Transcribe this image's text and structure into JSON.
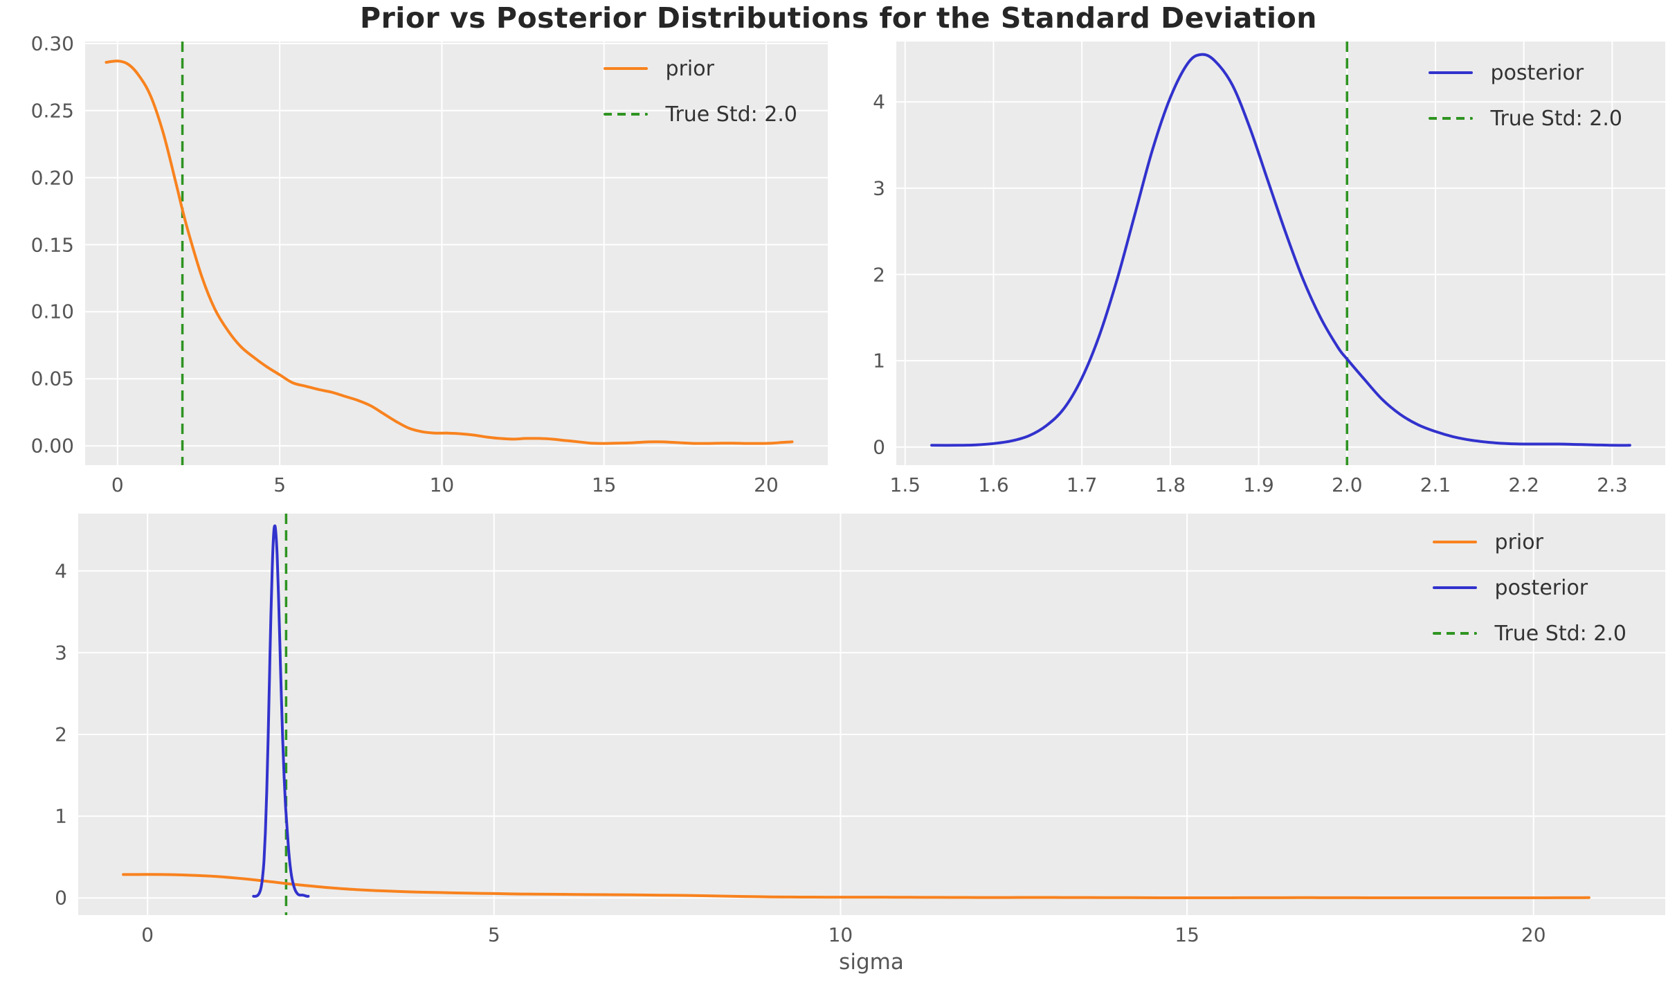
{
  "figure": {
    "title": "Prior vs Posterior Distributions for the Standard Deviation",
    "bottom_xlabel": "sigma",
    "colors": {
      "prior": "#f8821e",
      "posterior": "#3232cd",
      "true_std": "#2e9421",
      "plot_bg": "#ebebeb",
      "grid": "#ffffff",
      "tick_text": "#555555",
      "legend_text": "#333333",
      "title_text": "#262626"
    },
    "true_std_value": 2.0
  },
  "series_points": {
    "prior": [
      [
        -0.35,
        0.286
      ],
      [
        0,
        0.287
      ],
      [
        0.3,
        0.285
      ],
      [
        0.6,
        0.278
      ],
      [
        1.0,
        0.262
      ],
      [
        1.4,
        0.234
      ],
      [
        1.8,
        0.196
      ],
      [
        2.0,
        0.176
      ],
      [
        2.2,
        0.158
      ],
      [
        2.6,
        0.126
      ],
      [
        3.0,
        0.102
      ],
      [
        3.4,
        0.086
      ],
      [
        3.8,
        0.074
      ],
      [
        4.2,
        0.066
      ],
      [
        4.6,
        0.059
      ],
      [
        5.0,
        0.053
      ],
      [
        5.4,
        0.047
      ],
      [
        5.8,
        0.0445
      ],
      [
        6.2,
        0.042
      ],
      [
        6.6,
        0.04
      ],
      [
        7.0,
        0.037
      ],
      [
        7.4,
        0.034
      ],
      [
        7.8,
        0.03
      ],
      [
        8.2,
        0.024
      ],
      [
        8.6,
        0.018
      ],
      [
        9.0,
        0.013
      ],
      [
        9.4,
        0.0105
      ],
      [
        9.8,
        0.0095
      ],
      [
        10.2,
        0.0095
      ],
      [
        10.6,
        0.009
      ],
      [
        11.0,
        0.008
      ],
      [
        11.4,
        0.0065
      ],
      [
        11.8,
        0.0055
      ],
      [
        12.2,
        0.005
      ],
      [
        12.6,
        0.0055
      ],
      [
        13.0,
        0.0055
      ],
      [
        13.4,
        0.005
      ],
      [
        13.8,
        0.004
      ],
      [
        14.2,
        0.003
      ],
      [
        14.6,
        0.002
      ],
      [
        15.0,
        0.0018
      ],
      [
        15.4,
        0.002
      ],
      [
        15.8,
        0.0022
      ],
      [
        16.2,
        0.0028
      ],
      [
        16.6,
        0.003
      ],
      [
        17.0,
        0.0028
      ],
      [
        17.4,
        0.0022
      ],
      [
        17.8,
        0.0018
      ],
      [
        18.2,
        0.0018
      ],
      [
        18.6,
        0.002
      ],
      [
        19.0,
        0.002
      ],
      [
        19.4,
        0.0018
      ],
      [
        19.8,
        0.0018
      ],
      [
        20.2,
        0.002
      ],
      [
        20.5,
        0.0026
      ],
      [
        20.8,
        0.003
      ]
    ],
    "posterior": [
      [
        1.53,
        0.02
      ],
      [
        1.56,
        0.02
      ],
      [
        1.58,
        0.025
      ],
      [
        1.6,
        0.04
      ],
      [
        1.62,
        0.07
      ],
      [
        1.64,
        0.13
      ],
      [
        1.66,
        0.25
      ],
      [
        1.68,
        0.45
      ],
      [
        1.7,
        0.8
      ],
      [
        1.72,
        1.3
      ],
      [
        1.74,
        1.95
      ],
      [
        1.76,
        2.7
      ],
      [
        1.78,
        3.45
      ],
      [
        1.8,
        4.05
      ],
      [
        1.82,
        4.45
      ],
      [
        1.835,
        4.55
      ],
      [
        1.85,
        4.48
      ],
      [
        1.87,
        4.2
      ],
      [
        1.89,
        3.7
      ],
      [
        1.91,
        3.1
      ],
      [
        1.93,
        2.5
      ],
      [
        1.95,
        1.95
      ],
      [
        1.97,
        1.5
      ],
      [
        1.99,
        1.15
      ],
      [
        2.0,
        1.02
      ],
      [
        2.02,
        0.78
      ],
      [
        2.04,
        0.55
      ],
      [
        2.06,
        0.38
      ],
      [
        2.08,
        0.26
      ],
      [
        2.1,
        0.18
      ],
      [
        2.12,
        0.12
      ],
      [
        2.14,
        0.08
      ],
      [
        2.16,
        0.055
      ],
      [
        2.18,
        0.04
      ],
      [
        2.2,
        0.035
      ],
      [
        2.22,
        0.035
      ],
      [
        2.24,
        0.035
      ],
      [
        2.26,
        0.03
      ],
      [
        2.28,
        0.025
      ],
      [
        2.3,
        0.02
      ],
      [
        2.32,
        0.02
      ]
    ]
  },
  "chart_data": [
    {
      "id": "prior-panel",
      "type": "line",
      "xlim": [
        -1.0,
        21.9
      ],
      "ylim": [
        -0.0144,
        0.3015
      ],
      "xticks": [
        0,
        5,
        10,
        15,
        20
      ],
      "xtick_labels": [
        "0",
        "5",
        "10",
        "15",
        "20"
      ],
      "yticks": [
        0.0,
        0.05,
        0.1,
        0.15,
        0.2,
        0.25,
        0.3
      ],
      "ytick_labels": [
        "0.00",
        "0.05",
        "0.10",
        "0.15",
        "0.20",
        "0.25",
        "0.30"
      ],
      "grid": true,
      "series": [
        {
          "name": "prior",
          "color": "#f8821e",
          "points_ref": "prior"
        }
      ],
      "vline": {
        "x": 2.0,
        "color": "#2e9421",
        "label": "True Std: 2.0"
      },
      "legend": {
        "position": "upper right",
        "entries": [
          {
            "label": "prior",
            "color": "#f8821e",
            "dash": false
          },
          {
            "label": "True Std: 2.0",
            "color": "#2e9421",
            "dash": true
          }
        ]
      }
    },
    {
      "id": "posterior-panel",
      "type": "line",
      "xlim": [
        1.49,
        2.36
      ],
      "ylim": [
        -0.21,
        4.7
      ],
      "xticks": [
        1.5,
        1.6,
        1.7,
        1.8,
        1.9,
        2.0,
        2.1,
        2.2,
        2.3
      ],
      "xtick_labels": [
        "1.5",
        "1.6",
        "1.7",
        "1.8",
        "1.9",
        "2.0",
        "2.1",
        "2.2",
        "2.3"
      ],
      "yticks": [
        0,
        1,
        2,
        3,
        4
      ],
      "ytick_labels": [
        "0",
        "1",
        "2",
        "3",
        "4"
      ],
      "grid": true,
      "series": [
        {
          "name": "posterior",
          "color": "#3232cd",
          "points_ref": "posterior"
        }
      ],
      "vline": {
        "x": 2.0,
        "color": "#2e9421",
        "label": "True Std: 2.0"
      },
      "legend": {
        "position": "upper right",
        "entries": [
          {
            "label": "posterior",
            "color": "#3232cd",
            "dash": false
          },
          {
            "label": "True Std: 2.0",
            "color": "#2e9421",
            "dash": true
          }
        ]
      }
    },
    {
      "id": "combined-panel",
      "type": "line",
      "xlabel": "sigma",
      "xlim": [
        -1.0,
        21.9
      ],
      "ylim": [
        -0.21,
        4.7
      ],
      "xticks": [
        0,
        5,
        10,
        15,
        20
      ],
      "xtick_labels": [
        "0",
        "5",
        "10",
        "15",
        "20"
      ],
      "yticks": [
        0,
        1,
        2,
        3,
        4
      ],
      "ytick_labels": [
        "0",
        "1",
        "2",
        "3",
        "4"
      ],
      "grid": true,
      "series": [
        {
          "name": "prior",
          "color": "#f8821e",
          "points_ref": "prior"
        },
        {
          "name": "posterior",
          "color": "#3232cd",
          "points_ref": "posterior"
        }
      ],
      "vline": {
        "x": 2.0,
        "color": "#2e9421",
        "label": "True Std: 2.0"
      },
      "legend": {
        "position": "upper right",
        "entries": [
          {
            "label": "prior",
            "color": "#f8821e",
            "dash": false
          },
          {
            "label": "posterior",
            "color": "#3232cd",
            "dash": false
          },
          {
            "label": "True Std: 2.0",
            "color": "#2e9421",
            "dash": true
          }
        ]
      }
    }
  ]
}
